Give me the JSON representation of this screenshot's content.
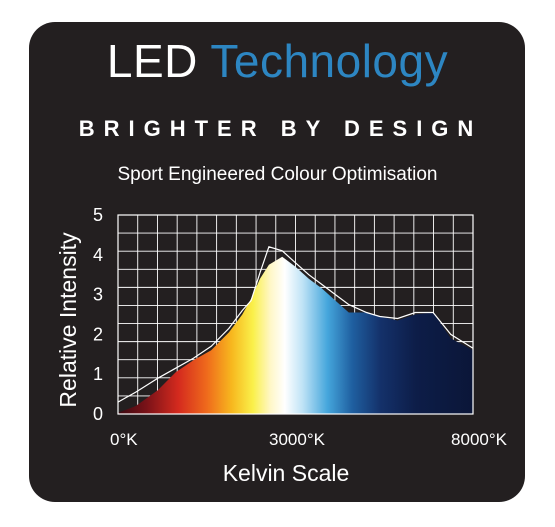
{
  "colors": {
    "background": "#231f20",
    "title_white": "#ffffff",
    "title_blue": "#2d86c2",
    "grid": "#ffffff"
  },
  "header": {
    "title_part1": "LED",
    "title_part2": "Technology",
    "tagline": "BRIGHTER BY DESIGN",
    "subtitle": "Sport Engineered Colour Optimisation"
  },
  "chart_data": {
    "type": "area",
    "title": "",
    "xlabel": "Kelvin Scale",
    "ylabel": "Relative Intensity",
    "x_tick_labels": [
      "0°K",
      "3000°K",
      "8000°K"
    ],
    "y_tick_labels": [
      "0",
      "1",
      "2",
      "3",
      "4",
      "5"
    ],
    "xlim": [
      0,
      8000
    ],
    "ylim": [
      0,
      5
    ],
    "grid": true,
    "legend": "none",
    "x": [
      0,
      400,
      900,
      1300,
      1700,
      2100,
      2500,
      2800,
      3000,
      3200,
      3400,
      3700,
      4000,
      4300,
      4600,
      4900,
      5200,
      5600,
      5900,
      6300,
      6700,
      7100,
      7500,
      8000
    ],
    "series": [
      {
        "values": [
          0.03,
          0.2,
          0.6,
          1.05,
          1.35,
          1.6,
          2.05,
          2.5,
          2.9,
          3.4,
          3.75,
          3.95,
          3.7,
          3.4,
          3.15,
          2.85,
          2.55,
          2.55,
          2.45,
          2.35,
          2.5,
          2.55,
          1.9,
          1.6
        ]
      },
      {
        "values": [
          0.3,
          0.55,
          0.9,
          1.15,
          1.4,
          1.7,
          2.15,
          2.6,
          2.85,
          3.55,
          4.2,
          4.1,
          3.8,
          3.5,
          3.25,
          3.0,
          2.75,
          2.55,
          2.45,
          2.4,
          2.55,
          2.55,
          2.0,
          1.65
        ]
      }
    ]
  }
}
